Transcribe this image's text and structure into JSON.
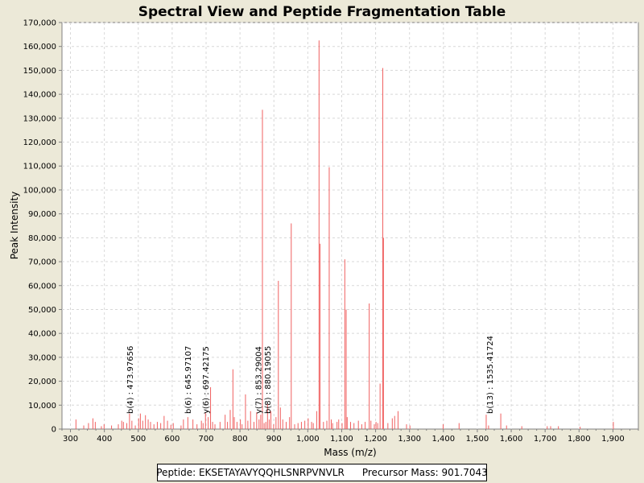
{
  "chart_data": {
    "type": "bar",
    "title": "Spectral View and Peptide Fragmentation Table",
    "xlabel": "Mass (m/z)",
    "ylabel": "Peak Intensity",
    "xlim": [
      275,
      1975
    ],
    "ylim": [
      0,
      170000
    ],
    "x_ticks": [
      300,
      400,
      500,
      600,
      700,
      800,
      900,
      1000,
      1100,
      1200,
      1300,
      1400,
      1500,
      1600,
      1700,
      1800,
      1900
    ],
    "x_tick_labels": [
      "300",
      "400",
      "500",
      "600",
      "700",
      "800",
      "900",
      "1,000",
      "1,100",
      "1,200",
      "1,300",
      "1,400",
      "1,500",
      "1,600",
      "1,700",
      "1,800",
      "1,900"
    ],
    "y_ticks": [
      0,
      10000,
      20000,
      30000,
      40000,
      50000,
      60000,
      70000,
      80000,
      90000,
      100000,
      110000,
      120000,
      130000,
      140000,
      150000,
      160000,
      170000
    ],
    "y_tick_labels": [
      "0",
      "10,000",
      "20,000",
      "30,000",
      "40,000",
      "50,000",
      "60,000",
      "70,000",
      "80,000",
      "90,000",
      "100,000",
      "110,000",
      "120,000",
      "130,000",
      "140,000",
      "150,000",
      "160,000",
      "170,000"
    ],
    "grid": true,
    "series": [
      {
        "name": "peaks",
        "color": "#f06060",
        "mz": [
          315,
          338,
          352,
          365,
          372,
          390,
          398,
          420,
          440,
          450,
          455,
          465,
          473,
          480,
          490,
          500,
          505,
          512,
          520,
          528,
          535,
          545,
          555,
          565,
          575,
          585,
          595,
          602,
          625,
          632,
          645,
          660,
          672,
          685,
          690,
          697,
          705,
          712,
          718,
          725,
          740,
          755,
          762,
          770,
          778,
          782,
          790,
          800,
          805,
          815,
          822,
          830,
          840,
          848,
          855,
          860,
          865,
          870,
          875,
          880,
          885,
          890,
          898,
          905,
          912,
          918,
          925,
          935,
          945,
          950,
          960,
          970,
          980,
          990,
          1000,
          1010,
          1015,
          1025,
          1032,
          1035,
          1045,
          1055,
          1062,
          1068,
          1072,
          1085,
          1090,
          1100,
          1108,
          1112,
          1115,
          1125,
          1135,
          1148,
          1158,
          1168,
          1180,
          1185,
          1195,
          1200,
          1205,
          1212,
          1220,
          1222,
          1235,
          1248,
          1255,
          1265,
          1290,
          1300,
          1398,
          1445,
          1525,
          1532,
          1568,
          1585,
          1630,
          1705,
          1715,
          1738,
          1802,
          1900
        ],
        "intensity": [
          4000,
          1500,
          2500,
          4500,
          3000,
          1200,
          2000,
          1500,
          2000,
          3500,
          3000,
          2500,
          6500,
          3500,
          1500,
          4500,
          6500,
          3500,
          5800,
          4000,
          3000,
          2000,
          3000,
          2500,
          5500,
          3500,
          1800,
          2500,
          1500,
          4000,
          5000,
          4000,
          2000,
          3500,
          2500,
          7000,
          5000,
          17500,
          3000,
          2000,
          3000,
          6000,
          3000,
          8000,
          25000,
          5000,
          3000,
          4000,
          2000,
          14500,
          3500,
          7500,
          3000,
          7000,
          4000,
          6000,
          133500,
          2500,
          3000,
          10500,
          4000,
          7500,
          2000,
          5000,
          62000,
          9000,
          4000,
          3000,
          5000,
          86000,
          2000,
          2500,
          3000,
          3500,
          4500,
          3000,
          2500,
          7500,
          162500,
          77500,
          3000,
          3500,
          109500,
          4000,
          2500,
          3000,
          4000,
          2500,
          71000,
          50000,
          5000,
          3000,
          2500,
          3500,
          2000,
          3000,
          52500,
          3500,
          2000,
          3000,
          2500,
          19000,
          151000,
          80000,
          2500,
          4500,
          5500,
          7500,
          2000,
          1500,
          2000,
          2500,
          6000,
          1500,
          6500,
          1500,
          1200,
          1200,
          1200,
          1200,
          1000,
          3000
        ]
      }
    ],
    "annotations": [
      {
        "mz": 473.97656,
        "label": "b(4) : 473.97656"
      },
      {
        "mz": 645.97107,
        "label": "b(6) : 645.97107"
      },
      {
        "mz": 697.42175,
        "label": "y(6) : 697.42175"
      },
      {
        "mz": 853.29004,
        "label": "y(7) : 853.29004"
      },
      {
        "mz": 880.19055,
        "label": "b(8) : 880.19055"
      },
      {
        "mz": 1535.41724,
        "label": "b(13) : 1535.41724"
      }
    ]
  },
  "info": {
    "peptide_label": "Peptide: EKSETAYAVYQQHLSNRPVNVLR",
    "precursor_label": "Precursor Mass: 901.7043"
  },
  "colors": {
    "background": "#ece9d8",
    "plot_bg": "#ffffff",
    "grid": "#d8d8d8",
    "peak": "#f06060"
  }
}
